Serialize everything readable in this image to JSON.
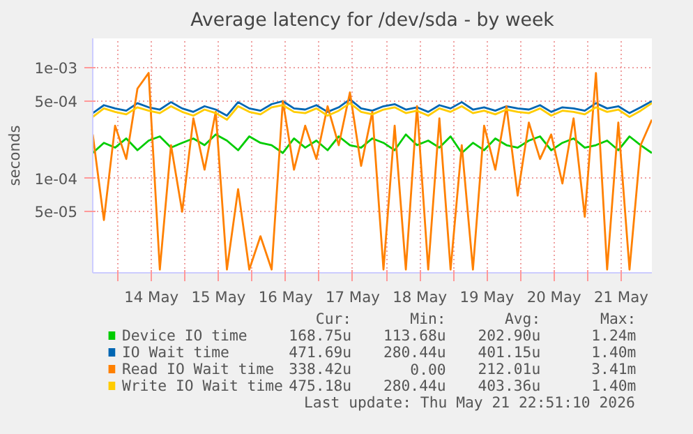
{
  "chart_data": {
    "type": "line",
    "title": "Average latency for /dev/sda - by week",
    "ylabel": "seconds",
    "log": "y",
    "grid": true,
    "legend": "bottom",
    "line_style": "solid",
    "x": [
      "2026-05-13T15:00",
      "2026-05-13T19:00",
      "2026-05-13T23:00",
      "2026-05-14T03:00",
      "2026-05-14T07:00",
      "2026-05-14T11:00",
      "2026-05-14T15:00",
      "2026-05-14T19:00",
      "2026-05-14T23:00",
      "2026-05-15T03:00",
      "2026-05-15T07:00",
      "2026-05-15T11:00",
      "2026-05-15T15:00",
      "2026-05-15T19:00",
      "2026-05-15T23:00",
      "2026-05-16T03:00",
      "2026-05-16T07:00",
      "2026-05-16T11:00",
      "2026-05-16T15:00",
      "2026-05-16T19:00",
      "2026-05-16T23:00",
      "2026-05-17T03:00",
      "2026-05-17T07:00",
      "2026-05-17T11:00",
      "2026-05-17T15:00",
      "2026-05-17T19:00",
      "2026-05-17T23:00",
      "2026-05-18T03:00",
      "2026-05-18T07:00",
      "2026-05-18T11:00",
      "2026-05-18T15:00",
      "2026-05-18T19:00",
      "2026-05-18T23:00",
      "2026-05-19T03:00",
      "2026-05-19T07:00",
      "2026-05-19T11:00",
      "2026-05-19T15:00",
      "2026-05-19T19:00",
      "2026-05-19T23:00",
      "2026-05-20T03:00",
      "2026-05-20T07:00",
      "2026-05-20T11:00",
      "2026-05-20T15:00",
      "2026-05-20T19:00",
      "2026-05-20T23:00",
      "2026-05-21T03:00",
      "2026-05-21T07:00",
      "2026-05-21T11:00",
      "2026-05-21T15:00",
      "2026-05-21T19:00",
      "2026-05-21T23:00"
    ],
    "xlim": [
      "2026-05-13T15:00",
      "2026-05-21T23:00"
    ],
    "xticks": [
      {
        "value": "2026-05-14T00:00",
        "label": null
      },
      {
        "value": "2026-05-14T12:00",
        "label": "14 May"
      },
      {
        "value": "2026-05-15T00:00",
        "label": null
      },
      {
        "value": "2026-05-15T12:00",
        "label": "15 May"
      },
      {
        "value": "2026-05-16T00:00",
        "label": null
      },
      {
        "value": "2026-05-16T12:00",
        "label": "16 May"
      },
      {
        "value": "2026-05-17T00:00",
        "label": null
      },
      {
        "value": "2026-05-17T12:00",
        "label": "17 May"
      },
      {
        "value": "2026-05-18T00:00",
        "label": null
      },
      {
        "value": "2026-05-18T12:00",
        "label": "18 May"
      },
      {
        "value": "2026-05-19T00:00",
        "label": null
      },
      {
        "value": "2026-05-19T12:00",
        "label": "19 May"
      },
      {
        "value": "2026-05-20T00:00",
        "label": null
      },
      {
        "value": "2026-05-20T12:00",
        "label": "20 May"
      },
      {
        "value": "2026-05-21T00:00",
        "label": null
      },
      {
        "value": "2026-05-21T12:00",
        "label": "21 May"
      }
    ],
    "ylim": [
      1.4e-05,
      0.00185
    ],
    "yticks": [
      {
        "value": 5e-05,
        "label": "5e-05"
      },
      {
        "value": 0.0001,
        "label": "1e-04"
      },
      {
        "value": 0.0005,
        "label": "5e-04"
      },
      {
        "value": 0.001,
        "label": "1e-03"
      }
    ],
    "series": [
      {
        "name": "Device IO time",
        "color": "#00cc00",
        "values": [
          0.00017,
          0.00021,
          0.00019,
          0.00023,
          0.00018,
          0.00022,
          0.00024,
          0.00019,
          0.00021,
          0.00023,
          0.0002,
          0.00025,
          0.00022,
          0.00018,
          0.00024,
          0.00021,
          0.0002,
          0.00017,
          0.00023,
          0.00019,
          0.00022,
          0.00018,
          0.00024,
          0.0002,
          0.00019,
          0.00023,
          0.00021,
          0.00018,
          0.00025,
          0.0002,
          0.00022,
          0.00019,
          0.00024,
          0.00017,
          0.00021,
          0.00018,
          0.00023,
          0.0002,
          0.00019,
          0.00022,
          0.00024,
          0.00018,
          0.00021,
          0.00023,
          0.00019,
          0.0002,
          0.00022,
          0.00018,
          0.00024,
          0.0002,
          0.00017
        ]
      },
      {
        "name": "IO Wait time",
        "color": "#0066b3",
        "values": [
          0.00039,
          0.00046,
          0.00043,
          0.00041,
          0.00048,
          0.00044,
          0.00042,
          0.00049,
          0.00043,
          0.0004,
          0.00045,
          0.00042,
          0.00037,
          0.00049,
          0.00043,
          0.00041,
          0.00047,
          0.0005,
          0.00043,
          0.00042,
          0.00046,
          0.0004,
          0.00044,
          0.00052,
          0.00043,
          0.00041,
          0.00045,
          0.00047,
          0.00042,
          0.00044,
          0.0004,
          0.00046,
          0.00043,
          0.00049,
          0.00042,
          0.00044,
          0.00041,
          0.00045,
          0.00043,
          0.00042,
          0.00046,
          0.0004,
          0.00044,
          0.00043,
          0.00041,
          0.00048,
          0.00043,
          0.00045,
          0.00039,
          0.00044,
          0.0005
        ]
      },
      {
        "name": "Read IO Wait time",
        "color": "#ff8000",
        "values": [
          0.00025,
          4.2e-05,
          0.0003,
          0.00015,
          0.00065,
          0.0009,
          1.5e-05,
          0.0002,
          5e-05,
          0.00035,
          0.00012,
          0.0004,
          1.5e-05,
          8e-05,
          1.5e-05,
          3e-05,
          1.5e-05,
          0.0005,
          0.00012,
          0.0003,
          0.00015,
          0.00045,
          0.0002,
          0.0006,
          0.00013,
          0.0004,
          1.5e-05,
          0.0003,
          1.5e-05,
          0.00045,
          1.5e-05,
          0.00035,
          1.5e-05,
          0.0002,
          1.5e-05,
          0.0003,
          0.00012,
          0.00045,
          7e-05,
          0.00032,
          0.00015,
          0.00025,
          9e-05,
          0.00035,
          4.5e-05,
          0.0009,
          1.5e-05,
          0.00032,
          1.5e-05,
          0.0002,
          0.00034
        ]
      },
      {
        "name": "Write IO Wait time",
        "color": "#ffcc00",
        "values": [
          0.00036,
          0.00043,
          0.0004,
          0.00038,
          0.00044,
          0.00041,
          0.00039,
          0.00045,
          0.0004,
          0.00037,
          0.00042,
          0.00039,
          0.00034,
          0.00045,
          0.0004,
          0.00038,
          0.00044,
          0.00046,
          0.0004,
          0.00039,
          0.00043,
          0.00037,
          0.00041,
          0.00048,
          0.0004,
          0.00038,
          0.00042,
          0.00044,
          0.00039,
          0.00041,
          0.00037,
          0.00043,
          0.0004,
          0.00045,
          0.00039,
          0.00041,
          0.00038,
          0.00042,
          0.0004,
          0.00039,
          0.00043,
          0.00037,
          0.00041,
          0.0004,
          0.00038,
          0.00044,
          0.0004,
          0.00042,
          0.00036,
          0.00041,
          0.00048
        ]
      }
    ],
    "annotations": [
      "Cur:",
      "Min:",
      "Avg:",
      "Max:",
      "168.75u",
      "113.68u",
      "202.90u",
      "1.24m",
      "471.69u",
      "280.44u",
      "401.15u",
      "1.40m",
      "338.42u",
      "0.00",
      "212.01u",
      "3.41m",
      "475.18u",
      "280.44u",
      "403.36u",
      "1.40m",
      "Last update: Thu May 21 22:51:10 2026"
    ]
  }
}
